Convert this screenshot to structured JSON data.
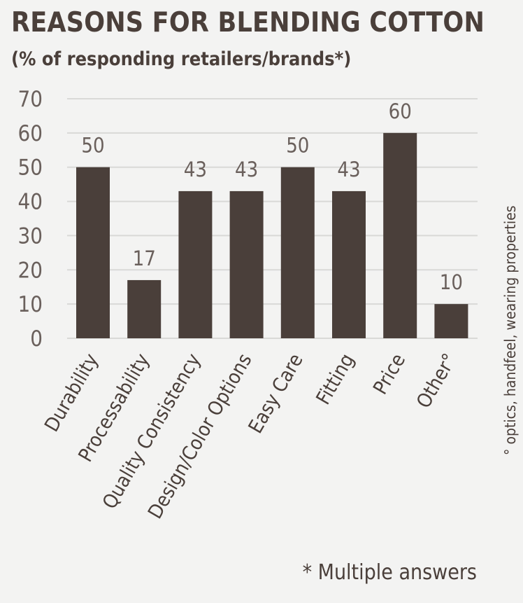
{
  "header": {
    "title": "REASONS FOR BLENDING COTTON",
    "subtitle": "(% of responding retailers/brands*)"
  },
  "notes": {
    "side": "° optics, handfeel, wearing properties",
    "footnote": "* Multiple answers"
  },
  "colors": {
    "bar": "#4a3f3a",
    "grid": "#d9d9d7",
    "text": "#4a3f3a",
    "axis_text": "#6a605c",
    "background": "#f3f3f2"
  },
  "chart_data": {
    "type": "bar",
    "title": "REASONS FOR BLENDING COTTON",
    "subtitle": "(% of responding retailers/brands*)",
    "xlabel": "",
    "ylabel": "",
    "categories": [
      "Durability",
      "Processability",
      "Quality Consistency",
      "Design/Color Options",
      "Easy Care",
      "Fitting",
      "Price",
      "Other°"
    ],
    "values": [
      50,
      17,
      43,
      43,
      50,
      43,
      60,
      10
    ],
    "ylim": [
      0,
      70
    ],
    "yticks": [
      0,
      10,
      20,
      30,
      40,
      50,
      60,
      70
    ],
    "grid": true,
    "data_labels": true,
    "legend": "none"
  }
}
